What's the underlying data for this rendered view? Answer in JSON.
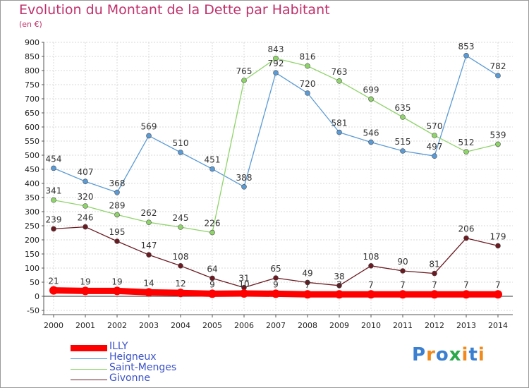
{
  "title": "Evolution du Montant de la Dette par Habitant",
  "subtitle": "(en €)",
  "logo": {
    "text": "Proxiti",
    "letters": [
      "P",
      "r",
      "o",
      "x",
      "i",
      "t",
      "i"
    ],
    "colors": [
      "#3a7fd0",
      "#f08a1c",
      "#3a7fd0",
      "#2aa84a",
      "#f08a1c",
      "#3a7fd0",
      "#f08a1c"
    ]
  },
  "chart_data": {
    "type": "line",
    "x": [
      2000,
      2001,
      2002,
      2003,
      2004,
      2005,
      2006,
      2007,
      2008,
      2009,
      2010,
      2011,
      2012,
      2013,
      2014
    ],
    "x_tick_labels": [
      "2000",
      "2001",
      "2002",
      "2003",
      "2004",
      "2005",
      "2006",
      "2007",
      "2008",
      "2009",
      "2010",
      "2011",
      "2012",
      "2013",
      "2014"
    ],
    "ylim": [
      -50,
      900
    ],
    "y_ticks": [
      -50,
      0,
      50,
      100,
      150,
      200,
      250,
      300,
      350,
      400,
      450,
      500,
      550,
      600,
      650,
      700,
      750,
      800,
      850,
      900
    ],
    "y_tick_labels": [
      "-50",
      "0",
      "50",
      "100",
      "150",
      "200",
      "250",
      "300",
      "350",
      "400",
      "450",
      "500",
      "550",
      "600",
      "650",
      "700",
      "750",
      "800",
      "850",
      "900"
    ],
    "grid": true,
    "legend_position": "bottom-left",
    "series": [
      {
        "name": "ILLY",
        "color": "#ff0000",
        "values": [
          21,
          19,
          19,
          14,
          12,
          9,
          10,
          9,
          7,
          7,
          7,
          7,
          7,
          7,
          7
        ],
        "labels": [
          "21",
          "19",
          "19",
          "14",
          "12",
          "9",
          "10",
          "9",
          "7",
          "7",
          "7",
          "7",
          "7",
          "7",
          "7"
        ]
      },
      {
        "name": "Heigneux",
        "color": "#5b9bd5",
        "values": [
          454,
          407,
          368,
          569,
          510,
          451,
          388,
          792,
          720,
          581,
          546,
          515,
          497,
          853,
          782
        ],
        "labels": [
          "454",
          "407",
          "368",
          "569",
          "510",
          "451",
          "388",
          "792",
          "720",
          "581",
          "546",
          "515",
          "497",
          "853",
          "782"
        ]
      },
      {
        "name": "Saint-Menges",
        "color": "#8fd46a",
        "values": [
          341,
          320,
          289,
          262,
          245,
          226,
          765,
          843,
          816,
          763,
          699,
          635,
          570,
          512,
          539
        ],
        "labels": [
          "341",
          "320",
          "289",
          "262",
          "245",
          "226",
          "765",
          "843",
          "816",
          "763",
          "699",
          "635",
          "570",
          "512",
          "539"
        ]
      },
      {
        "name": "Givonne",
        "color": "#6b1a22",
        "values": [
          239,
          246,
          195,
          147,
          108,
          64,
          31,
          65,
          49,
          38,
          108,
          90,
          81,
          206,
          179
        ],
        "labels": [
          "239",
          "246",
          "195",
          "147",
          "108",
          "64",
          "31",
          "65",
          "49",
          "38",
          "108",
          "90",
          "81",
          "206",
          "179"
        ]
      }
    ]
  }
}
